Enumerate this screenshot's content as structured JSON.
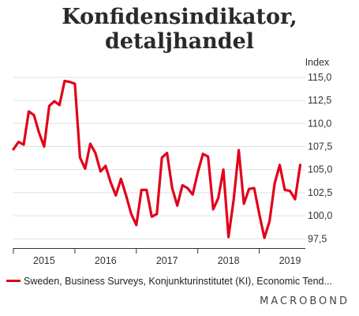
{
  "title_line1": "Konfidensindikator,",
  "title_line2": "detaljhandel",
  "unit_label": "Index",
  "legend_label": "Sweden, Business Surveys, Konjunkturinstitutet (KI), Economic Tend...",
  "brand": "MACROBOND",
  "colors": {
    "series": "#e2001a",
    "grid": "#e0e0e0",
    "axis": "#333333"
  },
  "chart_data": {
    "type": "line",
    "ylabel": "Index",
    "ylim": [
      96.5,
      115.5
    ],
    "yticks": [
      97.5,
      100.0,
      102.5,
      105.0,
      107.5,
      110.0,
      112.5,
      115.0
    ],
    "ytick_labels": [
      "97,5",
      "100,0",
      "102,5",
      "105,0",
      "107,5",
      "110,0",
      "112,5",
      "115,0"
    ],
    "xlim": [
      0,
      57
    ],
    "year_labels": [
      "2015",
      "2016",
      "2017",
      "2018",
      "2019"
    ],
    "year_label_positions": [
      6,
      18,
      30,
      42,
      54
    ],
    "year_boundaries": [
      0,
      12,
      24,
      36,
      48
    ],
    "series": [
      {
        "values": [
          107.2,
          108.0,
          107.7,
          111.3,
          110.9,
          109.0,
          107.5,
          111.9,
          112.4,
          112.0,
          114.6,
          114.5,
          114.3,
          106.3,
          105.1,
          107.8,
          106.8,
          104.8,
          105.4,
          103.6,
          102.2,
          104.0,
          102.2,
          100.2,
          99.0,
          102.8,
          102.8,
          99.9,
          100.2,
          106.3,
          106.8,
          103.0,
          101.1,
          103.3,
          103.0,
          102.3,
          104.7,
          106.7,
          106.4,
          100.7,
          101.9,
          105.0,
          97.7,
          101.7,
          107.1,
          101.3,
          102.9,
          103.0,
          100.2,
          97.6,
          99.4,
          103.5,
          105.5,
          102.8,
          102.7,
          101.8,
          105.5
        ]
      }
    ]
  }
}
